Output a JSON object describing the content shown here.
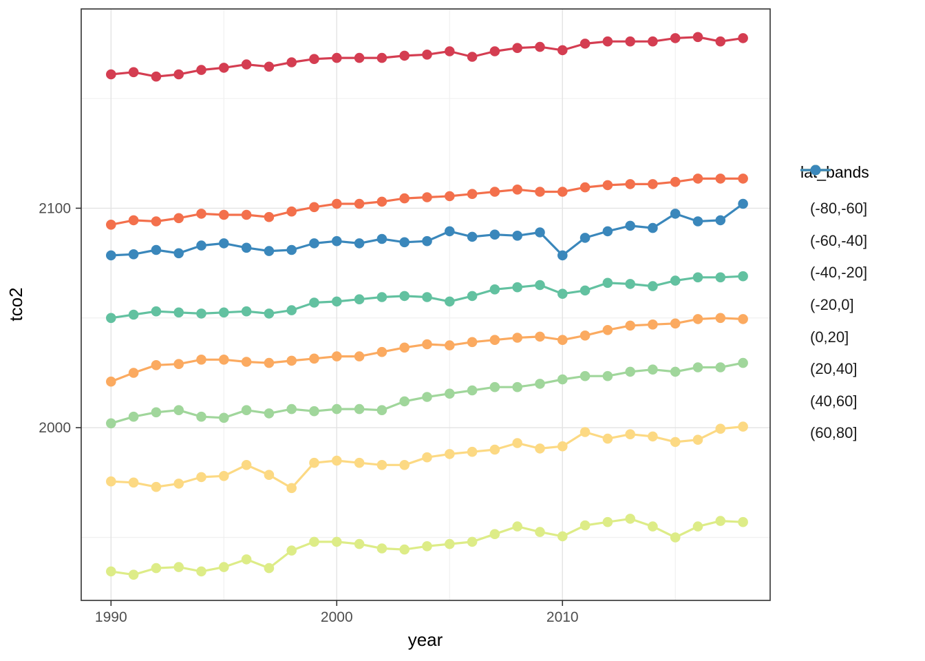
{
  "figure": {
    "background": "#ffffff",
    "axis_text_color": "#4d4d4d",
    "axis_title_color": "#000000",
    "panel_border_color": "#3c3c3c",
    "grid_major_color": "#e3e3e3",
    "grid_minor_color": "#f0f0f0"
  },
  "chart_data": {
    "type": "line",
    "title": "",
    "xlabel": "year",
    "ylabel": "tco2",
    "x": [
      1990,
      1991,
      1992,
      1993,
      1994,
      1995,
      1996,
      1997,
      1998,
      1999,
      2000,
      2001,
      2002,
      2003,
      2004,
      2005,
      2006,
      2007,
      2008,
      2009,
      2010,
      2011,
      2012,
      2013,
      2014,
      2015,
      2016,
      2017,
      2018
    ],
    "series": [
      {
        "name": "(-80,-60]",
        "color": "#d43d51",
        "values": [
          2161,
          2162,
          2160,
          2161,
          2163,
          2164,
          2165.5,
          2164.5,
          2166.5,
          2168,
          2168.5,
          2168.5,
          2168.5,
          2169.5,
          2170,
          2171.5,
          2169,
          2171.5,
          2173,
          2173.5,
          2172,
          2175,
          2176,
          2176,
          2176,
          2177.5,
          2178,
          2176,
          2177.5
        ]
      },
      {
        "name": "(-60,-40]",
        "color": "#f3704c",
        "values": [
          2092.5,
          2094.5,
          2094,
          2095.5,
          2097.5,
          2097,
          2097,
          2096,
          2098.5,
          2100.5,
          2102,
          2102,
          2103,
          2104.5,
          2105,
          2105.5,
          2106.5,
          2107.5,
          2108.5,
          2107.5,
          2107.5,
          2109.5,
          2110.5,
          2111,
          2111,
          2112,
          2113.5,
          2113.5,
          2113.5
        ]
      },
      {
        "name": "(-40,-20]",
        "color": "#fbaa60",
        "values": [
          2021,
          2025,
          2028.5,
          2029,
          2031,
          2031,
          2030,
          2029.5,
          2030.5,
          2031.5,
          2032.5,
          2032.5,
          2034.5,
          2036.5,
          2038,
          2037.5,
          2039,
          2040,
          2041,
          2041.5,
          2040,
          2042,
          2044.5,
          2046.5,
          2047,
          2047.5,
          2049.5,
          2050,
          2049.5
        ]
      },
      {
        "name": "(-20,0]",
        "color": "#fcd983",
        "values": [
          1975.5,
          1975,
          1973,
          1974.5,
          1977.5,
          1978,
          1983,
          1978.5,
          1972.5,
          1984,
          1985,
          1984,
          1983,
          1983,
          1986.5,
          1988,
          1989,
          1990,
          1993,
          1990.5,
          1991.5,
          1998,
          1995,
          1997,
          1996,
          1993.5,
          1994.5,
          1999.5,
          2000.5
        ]
      },
      {
        "name": "(0,20]",
        "color": "#ddec87",
        "values": [
          1934.5,
          1933,
          1936,
          1936.5,
          1934.5,
          1936.5,
          1940,
          1936,
          1944,
          1948,
          1948,
          1947,
          1945,
          1944.5,
          1946,
          1947,
          1948,
          1951.5,
          1955,
          1952.5,
          1950.5,
          1955.5,
          1957,
          1958.5,
          1955,
          1950,
          1955,
          1957.5,
          1957
        ]
      },
      {
        "name": "(20,40]",
        "color": "#a0d69b",
        "values": [
          2002,
          2005,
          2007,
          2008,
          2005,
          2004.5,
          2008,
          2006.5,
          2008.5,
          2007.5,
          2008.5,
          2008.5,
          2008,
          2012,
          2014,
          2015.5,
          2017,
          2018.5,
          2018.5,
          2020,
          2022,
          2023.5,
          2023.5,
          2025.5,
          2026.5,
          2025.5,
          2027.5,
          2027.5,
          2029.5
        ]
      },
      {
        "name": "(40,60]",
        "color": "#62c1a0",
        "values": [
          2050,
          2051.5,
          2053,
          2052.5,
          2052,
          2052.5,
          2053,
          2052,
          2053.5,
          2057,
          2057.5,
          2058.5,
          2059.5,
          2060,
          2059.5,
          2057.5,
          2060,
          2063,
          2064,
          2065,
          2061,
          2062.5,
          2066,
          2065.5,
          2064.5,
          2067,
          2068.5,
          2068.5,
          2069
        ]
      },
      {
        "name": "(60,80]",
        "color": "#3a87bb",
        "values": [
          2078.5,
          2079,
          2081,
          2079.5,
          2083,
          2084,
          2082,
          2080.5,
          2081,
          2084,
          2085,
          2084,
          2086,
          2084.5,
          2085,
          2089.5,
          2087,
          2088,
          2087.5,
          2089,
          2078.5,
          2086.5,
          2089.5,
          2092,
          2091,
          2097.5,
          2094,
          2094.5,
          2102
        ]
      }
    ],
    "x_ticks": {
      "major": [
        1990,
        2000,
        2010
      ],
      "minor": [
        1995,
        2005,
        2015
      ]
    },
    "y_ticks": {
      "major": [
        2000,
        2100
      ],
      "minor": [
        1950,
        2050,
        2150
      ]
    },
    "xlim": [
      1988.68,
      2019.2
    ],
    "ylim": [
      1921.3,
      2190.8
    ],
    "grid": true,
    "legend": {
      "title": "lat_bands",
      "position": "right"
    }
  }
}
